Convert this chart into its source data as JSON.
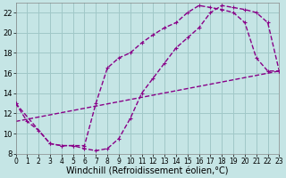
{
  "xlabel": "Windchill (Refroidissement éolien,°C)",
  "bg_color": "#c5e5e5",
  "grid_color": "#a0c8c8",
  "line_color": "#880088",
  "xlim": [
    0,
    23
  ],
  "ylim": [
    8,
    23
  ],
  "curve1_x": [
    0,
    1,
    2,
    3,
    4,
    5,
    6,
    7,
    8,
    9,
    10,
    11,
    12,
    13,
    14,
    15,
    16,
    17,
    18,
    19,
    20,
    21,
    22,
    23
  ],
  "curve1_y": [
    13.0,
    11.2,
    10.3,
    9.0,
    8.8,
    8.8,
    8.8,
    13.0,
    16.5,
    17.5,
    18.0,
    19.0,
    19.8,
    20.5,
    21.0,
    22.0,
    22.7,
    22.5,
    22.3,
    22.0,
    21.0,
    17.5,
    16.2,
    16.2
  ],
  "curve2_x": [
    0,
    3,
    4,
    5,
    6,
    7,
    8,
    9,
    10,
    11,
    12,
    13,
    14,
    15,
    16,
    17,
    18,
    19,
    20,
    21,
    22,
    23
  ],
  "curve2_y": [
    13.0,
    9.0,
    8.8,
    8.8,
    8.5,
    8.3,
    8.5,
    9.5,
    11.5,
    14.0,
    15.5,
    17.0,
    18.5,
    19.5,
    20.5,
    22.0,
    22.7,
    22.5,
    22.3,
    22.0,
    21.0,
    16.2
  ],
  "curve3_x": [
    0,
    23
  ],
  "curve3_y": [
    11.2,
    16.2
  ],
  "line_width": 1.0,
  "xlabel_fontsize": 7,
  "tick_fontsize": 5.5
}
